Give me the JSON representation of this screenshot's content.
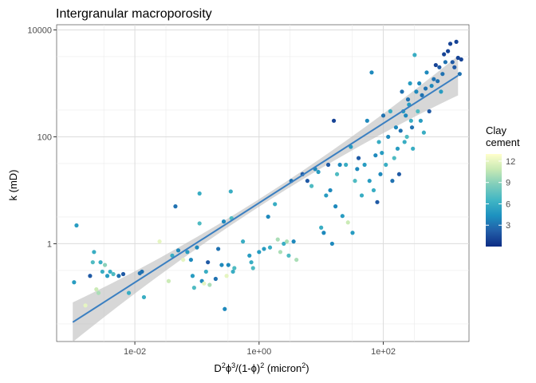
{
  "chart_data": {
    "type": "scatter",
    "title": "Intergranular macroporosity",
    "xlabel": {
      "parts": [
        {
          "t": "D"
        },
        {
          "t": "2",
          "sup": true
        },
        {
          "t": "ϕ"
        },
        {
          "t": "3",
          "sup": true
        },
        {
          "t": "/(1-ϕ)"
        },
        {
          "t": "2",
          "sup": true
        },
        {
          "t": " (micron"
        },
        {
          "t": "2",
          "sup": true
        },
        {
          "t": ")"
        }
      ]
    },
    "ylabel": "k (mD)",
    "x_scale": "log10",
    "y_scale": "log10",
    "xlim": [
      0.00055,
      2400
    ],
    "ylim": [
      0.0148,
      12500
    ],
    "x_ticks": [
      {
        "value": 0.01,
        "label": "1e-02"
      },
      {
        "value": 1,
        "label": "1e+00"
      },
      {
        "value": 100,
        "label": "1e+02"
      }
    ],
    "y_ticks": [
      {
        "value": 1,
        "label": "1"
      },
      {
        "value": 100,
        "label": "100"
      },
      {
        "value": 10000,
        "label": "10000"
      }
    ],
    "grid": true,
    "legend": {
      "title": "Clay\ncement",
      "type": "colorbar",
      "position": "right",
      "range": [
        0,
        13
      ],
      "ticks": [
        3,
        6,
        9,
        12
      ],
      "colors": [
        "#0c2c84",
        "#225ea8",
        "#1d91c0",
        "#41b6c4",
        "#7fcdbb",
        "#c7e9b4",
        "#ffffcc"
      ]
    },
    "trend": {
      "type": "linear-fit-log-log",
      "color": "#3a7fc1",
      "band_color": "#bdbdbd",
      "x_range": [
        0.001,
        1600
      ],
      "y_at_x_min": 0.034,
      "y_at_x_max": 1400
    },
    "series": [
      {
        "points": [
          [
            0.00105,
            0.19,
            5
          ],
          [
            0.00115,
            2.2,
            5
          ],
          [
            0.0016,
            0.07,
            12
          ],
          [
            0.0019,
            0.25,
            2
          ],
          [
            0.0021,
            0.45,
            7
          ],
          [
            0.0022,
            0.7,
            6
          ],
          [
            0.0024,
            0.14,
            11
          ],
          [
            0.0026,
            0.12,
            10
          ],
          [
            0.0028,
            0.45,
            6
          ],
          [
            0.003,
            0.3,
            6
          ],
          [
            0.0033,
            0.4,
            9
          ],
          [
            0.0036,
            0.25,
            5
          ],
          [
            0.004,
            0.3,
            6
          ],
          [
            0.0045,
            0.27,
            7
          ],
          [
            0.0055,
            0.25,
            3
          ],
          [
            0.0065,
            0.27,
            2
          ],
          [
            0.008,
            0.12,
            6
          ],
          [
            0.012,
            0.28,
            3
          ],
          [
            0.013,
            0.3,
            3
          ],
          [
            0.014,
            0.1,
            6
          ],
          [
            0.025,
            1.1,
            12
          ],
          [
            0.035,
            0.2,
            11
          ],
          [
            0.04,
            0.6,
            6
          ],
          [
            0.045,
            5.0,
            3
          ],
          [
            0.05,
            0.75,
            4
          ],
          [
            0.06,
            0.5,
            12
          ],
          [
            0.07,
            0.7,
            5
          ],
          [
            0.08,
            0.5,
            4
          ],
          [
            0.085,
            0.25,
            5
          ],
          [
            0.09,
            0.15,
            7
          ],
          [
            0.1,
            0.85,
            4
          ],
          [
            0.11,
            2.4,
            7
          ],
          [
            0.11,
            8.7,
            6
          ],
          [
            0.12,
            0.2,
            4
          ],
          [
            0.13,
            0.18,
            12
          ],
          [
            0.14,
            0.3,
            6
          ],
          [
            0.15,
            0.45,
            2
          ],
          [
            0.16,
            0.17,
            10
          ],
          [
            0.2,
            0.22,
            3
          ],
          [
            0.22,
            0.8,
            3
          ],
          [
            0.25,
            0.4,
            4
          ],
          [
            0.27,
            2.6,
            4
          ],
          [
            0.28,
            0.06,
            4
          ],
          [
            0.3,
            0.25,
            12
          ],
          [
            0.32,
            0.4,
            4
          ],
          [
            0.35,
            9.5,
            6
          ],
          [
            0.36,
            3.0,
            7
          ],
          [
            0.38,
            0.3,
            6
          ],
          [
            0.4,
            0.35,
            7
          ],
          [
            0.55,
            1.1,
            6
          ],
          [
            0.7,
            0.6,
            5
          ],
          [
            0.75,
            0.45,
            6
          ],
          [
            0.8,
            0.35,
            7
          ],
          [
            1.0,
            0.7,
            5
          ],
          [
            1.2,
            0.8,
            5
          ],
          [
            1.4,
            3.2,
            4
          ],
          [
            1.5,
            0.85,
            6
          ],
          [
            1.8,
            5.5,
            6
          ],
          [
            2.0,
            1.2,
            10
          ],
          [
            2.2,
            0.7,
            10
          ],
          [
            2.5,
            1.0,
            6
          ],
          [
            2.8,
            1.1,
            10
          ],
          [
            3.0,
            0.6,
            7
          ],
          [
            3.3,
            15,
            3
          ],
          [
            3.6,
            1.1,
            4
          ],
          [
            4.0,
            0.5,
            10
          ],
          [
            5,
            20,
            2
          ],
          [
            6,
            15,
            2
          ],
          [
            7,
            12,
            7
          ],
          [
            8,
            25,
            4
          ],
          [
            9,
            22,
            5
          ],
          [
            10,
            2.0,
            6
          ],
          [
            11,
            1.6,
            4
          ],
          [
            12,
            8,
            5
          ],
          [
            13,
            30,
            2
          ],
          [
            14,
            10,
            4
          ],
          [
            15,
            1.0,
            4
          ],
          [
            16,
            200,
            1
          ],
          [
            17,
            5,
            4
          ],
          [
            18,
            20,
            7
          ],
          [
            20,
            30,
            4
          ],
          [
            22,
            3.3,
            5
          ],
          [
            25,
            30,
            6
          ],
          [
            27,
            2.5,
            11
          ],
          [
            30,
            65,
            5
          ],
          [
            32,
            1.6,
            5
          ],
          [
            35,
            15,
            7
          ],
          [
            38,
            25,
            4
          ],
          [
            40,
            40,
            2
          ],
          [
            45,
            8,
            6
          ],
          [
            50,
            30,
            5
          ],
          [
            55,
            200,
            4
          ],
          [
            60,
            15,
            5
          ],
          [
            65,
            1600,
            4
          ],
          [
            70,
            10,
            6
          ],
          [
            75,
            45,
            4
          ],
          [
            80,
            6,
            2
          ],
          [
            85,
            80,
            6
          ],
          [
            90,
            20,
            4
          ],
          [
            95,
            50,
            5
          ],
          [
            100,
            250,
            3
          ],
          [
            110,
            30,
            6
          ],
          [
            120,
            100,
            4
          ],
          [
            130,
            300,
            6
          ],
          [
            140,
            15,
            3
          ],
          [
            150,
            40,
            7
          ],
          [
            160,
            150,
            4
          ],
          [
            170,
            60,
            5
          ],
          [
            180,
            20,
            2
          ],
          [
            190,
            130,
            3
          ],
          [
            200,
            700,
            3
          ],
          [
            210,
            300,
            5
          ],
          [
            220,
            80,
            6
          ],
          [
            230,
            250,
            4
          ],
          [
            240,
            100,
            7
          ],
          [
            250,
            500,
            3
          ],
          [
            260,
            400,
            5
          ],
          [
            270,
            1000,
            5
          ],
          [
            280,
            200,
            6
          ],
          [
            290,
            150,
            3
          ],
          [
            300,
            60,
            6
          ],
          [
            320,
            3400,
            6
          ],
          [
            340,
            700,
            4
          ],
          [
            360,
            300,
            7
          ],
          [
            380,
            1000,
            4
          ],
          [
            400,
            200,
            5
          ],
          [
            420,
            600,
            3
          ],
          [
            450,
            120,
            6
          ],
          [
            480,
            800,
            3
          ],
          [
            500,
            1600,
            4
          ],
          [
            550,
            300,
            2
          ],
          [
            600,
            900,
            4
          ],
          [
            650,
            1200,
            3
          ],
          [
            700,
            2200,
            1
          ],
          [
            750,
            1100,
            3
          ],
          [
            800,
            2000,
            2
          ],
          [
            850,
            700,
            5
          ],
          [
            900,
            1500,
            3
          ],
          [
            950,
            3500,
            1
          ],
          [
            1000,
            2500,
            3
          ],
          [
            1100,
            4000,
            1
          ],
          [
            1200,
            5500,
            1
          ],
          [
            1300,
            2500,
            2
          ],
          [
            1400,
            2000,
            2
          ],
          [
            1500,
            6000,
            1
          ],
          [
            1600,
            3000,
            1
          ],
          [
            1700,
            1500,
            3
          ],
          [
            1800,
            2800,
            1
          ]
        ]
      }
    ]
  }
}
